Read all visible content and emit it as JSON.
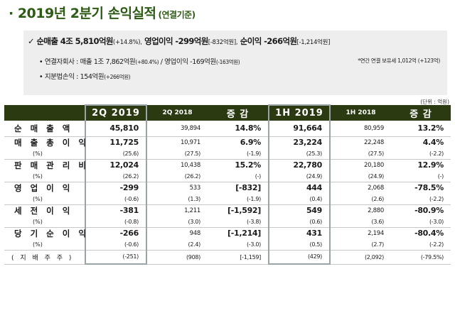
{
  "title": {
    "main": "· 2019년 2분기 손익실적",
    "sub": "(연결기준)"
  },
  "summary": {
    "headline": {
      "check": "✓",
      "sales": "순매출 4조 5,810억원",
      "sales_chg": "(+14.8%),",
      "op": "영업이익 -299억원",
      "op_chg": "[-832억원],",
      "net": "순이익 -266억원",
      "net_chg": "[-1,214억원]"
    },
    "sub1": {
      "bullet": "•",
      "text_a": "연결자회사 : 매출 1조 7,862억원",
      "chg_a": "(+80.4%)",
      "text_b": "/ 영업이익 -169억원",
      "chg_b": "(-163억원)"
    },
    "note": "*연간 연결 보유세 1,012억 (+123억)",
    "sub2": {
      "bullet": "•",
      "text": "지분법손익 : 154억원",
      "chg": "(+266억원)"
    }
  },
  "unit": "(단위 : 억원)",
  "table": {
    "headers": [
      "",
      "2Q 2019",
      "2Q 2018",
      "증 감",
      "1H 2019",
      "1H 2018",
      "증 감"
    ],
    "rows": [
      {
        "label": "순 매 출 액",
        "values": [
          "45,810",
          "39,894",
          "14.8%",
          "91,664",
          "80,959",
          "13.2%"
        ]
      },
      {
        "label": "매 출 총 이 익",
        "values": [
          "11,725",
          "10,971",
          "6.9%",
          "23,224",
          "22,248",
          "4.4%"
        ],
        "pct_label": "(%)",
        "pct": [
          "(25.6)",
          "(27.5)",
          "(-1.9)",
          "(25.3)",
          "(27.5)",
          "(-2.2)"
        ]
      },
      {
        "label": "판 매 관 리 비",
        "values": [
          "12,024",
          "10,438",
          "15.2%",
          "22,780",
          "20,180",
          "12.9%"
        ],
        "pct_label": "(%)",
        "pct": [
          "(26.2)",
          "(26.2)",
          "(-)",
          "(24.9)",
          "(24.9)",
          "(-)"
        ]
      },
      {
        "label": "영 업 이 익",
        "values": [
          "-299",
          "533",
          "[-832]",
          "444",
          "2,068",
          "-78.5%"
        ],
        "pct_label": "(%)",
        "pct": [
          "(-0.6)",
          "(1.3)",
          "(-1.9)",
          "(0.4)",
          "(2.6)",
          "(-2.2)"
        ]
      },
      {
        "label": "세 전 이 익",
        "values": [
          "-381",
          "1,211",
          "[-1,592]",
          "549",
          "2,880",
          "-80.9%"
        ],
        "pct_label": "(%)",
        "pct": [
          "(-0.8)",
          "(3.0)",
          "(-3.8)",
          "(0.6)",
          "(3.6)",
          "(-3.0)"
        ]
      },
      {
        "label": "당 기 순 이 익",
        "values": [
          "-266",
          "948",
          "[-1,214]",
          "431",
          "2,194",
          "-80.4%"
        ],
        "pct_label": "(%)",
        "pct": [
          "(-0.6)",
          "(2.4)",
          "(-3.0)",
          "(0.5)",
          "(2.7)",
          "(-2.2)"
        ]
      }
    ],
    "controlling": {
      "label": "( 지 배 주 주 )",
      "values": [
        "(-251)",
        "(908)",
        "[-1,159]",
        "(429)",
        "(2,092)",
        "(-79.5%)"
      ]
    }
  }
}
